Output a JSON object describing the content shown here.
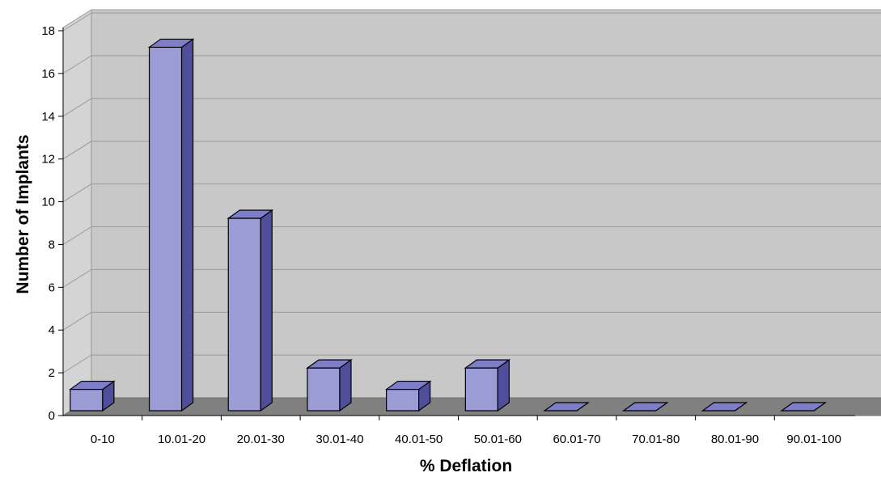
{
  "colors": {
    "bar_front": "#9b9bd5",
    "bar_top": "#7d7dc8",
    "bar_side": "#4e4e9a",
    "wall": "#c8c8c8",
    "floor": "#808080",
    "gridline": "#9a9a9a"
  },
  "chart_data": {
    "type": "bar",
    "title": "",
    "xlabel": "% Deflation",
    "ylabel": "Number of Implants",
    "categories": [
      "0-10",
      "10.01-20",
      "20.01-30",
      "30.01-40",
      "40.01-50",
      "50.01-60",
      "60.01-70",
      "70.01-80",
      "80.01-90",
      "90.01-100"
    ],
    "values": [
      1,
      17,
      9,
      2,
      1,
      2,
      0,
      0,
      0,
      0
    ],
    "ylim": [
      0,
      18
    ],
    "yticks": [
      0,
      2,
      4,
      6,
      8,
      10,
      12,
      14,
      16,
      18
    ],
    "grid": true,
    "style": "3d-column",
    "legend": "none"
  }
}
